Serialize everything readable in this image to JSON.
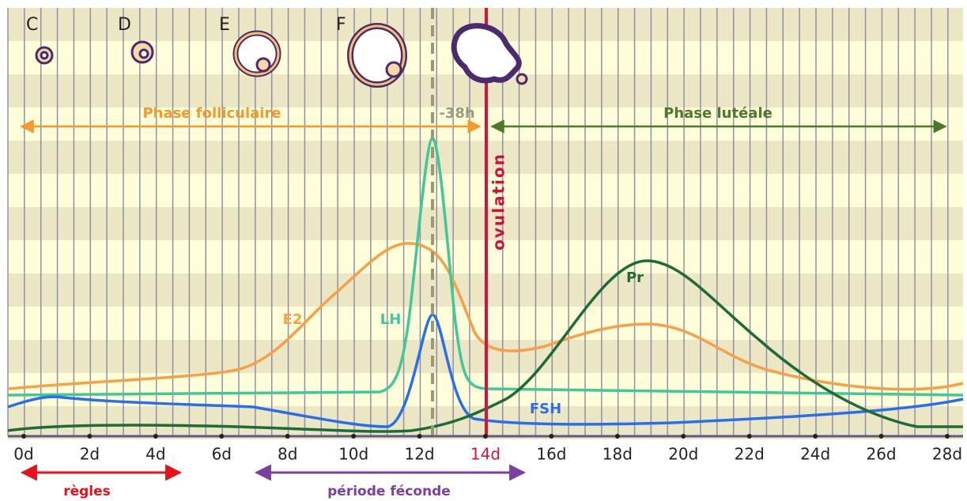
{
  "follicle_labels": [
    "C",
    "D",
    "E",
    "F"
  ],
  "phases": {
    "follicular": "Phase folliculaire",
    "luteal": "Phase lutéale",
    "lh_offset": "-38h",
    "ovulation": "ovulation"
  },
  "curves": {
    "e2": "E2",
    "lh": "LH",
    "fsh": "FSH",
    "pr": "Pr"
  },
  "x_axis": [
    "0d",
    "2d",
    "4d",
    "6d",
    "8d",
    "10d",
    "12d",
    "14d",
    "16d",
    "18d",
    "20d",
    "22d",
    "24d",
    "26d",
    "28d"
  ],
  "bottom": {
    "menses": "règles",
    "fertile": "période féconde"
  }
}
